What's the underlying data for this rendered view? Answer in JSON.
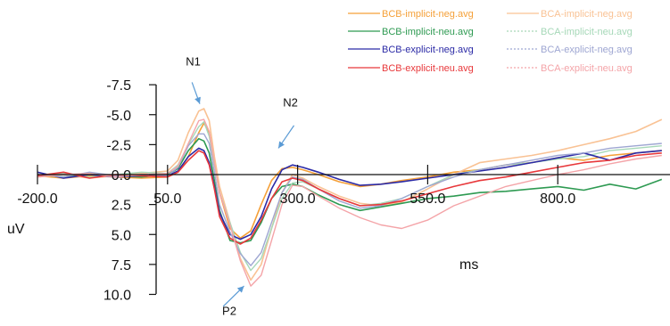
{
  "chart_data": {
    "type": "line",
    "title": "",
    "xlabel": "ms",
    "ylabel": "uV",
    "xlim": [
      -200,
      1000
    ],
    "ylim": [
      -7.5,
      10
    ],
    "y_inverted": true,
    "grid": false,
    "legend_position": "top-right",
    "x_ticks": [
      {
        "value": -200,
        "label": "-200.0"
      },
      {
        "value": 50,
        "label": "50.0"
      },
      {
        "value": 300,
        "label": "300.0"
      },
      {
        "value": 550,
        "label": "550.0"
      },
      {
        "value": 800,
        "label": "800.0"
      }
    ],
    "y_ticks": [
      {
        "value": -7.5,
        "label": "-7.5"
      },
      {
        "value": -5,
        "label": "-5.0"
      },
      {
        "value": -2.5,
        "label": "-2.5"
      },
      {
        "value": 0,
        "label": "0.0"
      },
      {
        "value": 2.5,
        "label": "2.5"
      },
      {
        "value": 5,
        "label": "5.0"
      },
      {
        "value": 7.5,
        "label": "7.5"
      },
      {
        "value": 10,
        "label": "10.0"
      }
    ],
    "annotations": [
      {
        "label": "N1",
        "label_x": 85,
        "label_y": -9.1,
        "arrow_from": [
          97,
          -7.7
        ],
        "arrow_to": [
          112,
          -5.9
        ]
      },
      {
        "label": "N2",
        "label_x": 272,
        "label_y": -5.7,
        "arrow_from": [
          293,
          -4.1
        ],
        "arrow_to": [
          263,
          -2.2
        ]
      },
      {
        "label": "P2",
        "label_x": 155,
        "label_y": 11.7,
        "arrow_from": [
          157,
          11.0
        ],
        "arrow_to": [
          197,
          9.3
        ]
      }
    ],
    "series": [
      {
        "name": "BCB-implicit-neg.avg",
        "color": "#f5a038",
        "dashed": false,
        "x": [
          -200,
          -150,
          -100,
          -50,
          0,
          50,
          70,
          90,
          110,
          120,
          130,
          140,
          150,
          170,
          190,
          210,
          230,
          250,
          270,
          290,
          310,
          340,
          380,
          420,
          460,
          500,
          550,
          600,
          650,
          700,
          750,
          800,
          850,
          900,
          950,
          1000
        ],
        "y": [
          0.1,
          0.3,
          0.1,
          0.2,
          0.3,
          0.2,
          -0.2,
          -1.5,
          -3.5,
          -4.3,
          -3.5,
          -1.0,
          1.5,
          4.5,
          5.3,
          4.7,
          2.5,
          0.5,
          -0.5,
          -0.6,
          -0.4,
          0.0,
          0.6,
          1.0,
          0.8,
          0.5,
          0.2,
          -0.2,
          -0.4,
          -0.8,
          -1.0,
          -1.4,
          -1.2,
          -1.6,
          -1.8,
          -2.0
        ]
      },
      {
        "name": "BCA-implicit-neg.avg",
        "color": "#f9c294",
        "dashed": false,
        "x": [
          -200,
          -150,
          -100,
          -50,
          0,
          50,
          70,
          90,
          110,
          120,
          130,
          140,
          150,
          170,
          190,
          210,
          230,
          250,
          270,
          290,
          310,
          340,
          380,
          420,
          460,
          500,
          550,
          600,
          650,
          700,
          750,
          800,
          850,
          900,
          950,
          1000
        ],
        "y": [
          0.2,
          0.0,
          0.3,
          0.1,
          -0.1,
          -0.3,
          -1.2,
          -3.5,
          -5.3,
          -5.5,
          -4.5,
          -1.5,
          1.0,
          4.0,
          7.0,
          8.8,
          7.5,
          4.5,
          1.5,
          0.0,
          0.3,
          1.0,
          1.8,
          2.4,
          2.6,
          2.3,
          1.2,
          0.0,
          -1.0,
          -1.3,
          -1.6,
          -2.0,
          -2.5,
          -3.0,
          -3.6,
          -4.6
        ]
      },
      {
        "name": "BCB-implicit-neu.avg",
        "color": "#2e9a52",
        "dashed": false,
        "x": [
          -200,
          -150,
          -100,
          -50,
          0,
          50,
          70,
          90,
          110,
          120,
          130,
          140,
          150,
          170,
          190,
          210,
          230,
          250,
          270,
          290,
          310,
          340,
          380,
          420,
          460,
          500,
          550,
          600,
          650,
          700,
          750,
          800,
          850,
          900,
          950,
          1000
        ],
        "y": [
          0.0,
          0.2,
          -0.1,
          0.1,
          0.2,
          0.0,
          -0.5,
          -2.0,
          -3.0,
          -2.8,
          -1.8,
          0.5,
          3.0,
          5.5,
          5.7,
          5.5,
          4.0,
          2.0,
          1.0,
          0.8,
          1.0,
          1.7,
          2.5,
          3.0,
          2.7,
          2.4,
          2.0,
          1.8,
          1.5,
          1.4,
          1.2,
          1.0,
          1.3,
          0.8,
          1.2,
          0.4
        ]
      },
      {
        "name": "BCA-implicit-neu.avg",
        "color": "#a6d8b8",
        "dashed": true,
        "x": [
          -200,
          -150,
          -100,
          -50,
          0,
          50,
          70,
          90,
          110,
          120,
          130,
          140,
          150,
          170,
          190,
          210,
          230,
          250,
          270,
          290,
          310,
          340,
          380,
          420,
          460,
          500,
          550,
          600,
          650,
          700,
          750,
          800,
          850,
          900,
          950,
          1000
        ],
        "y": [
          0.1,
          -0.1,
          0.2,
          0.0,
          -0.2,
          -0.1,
          -0.8,
          -2.5,
          -4.0,
          -4.4,
          -3.2,
          -0.8,
          1.5,
          4.0,
          6.5,
          8.0,
          7.0,
          4.5,
          2.0,
          0.7,
          0.6,
          1.2,
          2.0,
          2.6,
          2.4,
          2.0,
          1.0,
          0.0,
          -0.4,
          -0.8,
          -1.0,
          -1.3,
          -1.5,
          -2.0,
          -2.2,
          -2.4
        ]
      },
      {
        "name": "BCB-explicit-neg.avg",
        "color": "#2b2aa6",
        "dashed": false,
        "x": [
          -200,
          -150,
          -100,
          -50,
          0,
          50,
          70,
          90,
          110,
          120,
          130,
          140,
          150,
          170,
          190,
          210,
          230,
          250,
          270,
          290,
          310,
          340,
          380,
          420,
          460,
          500,
          550,
          600,
          650,
          700,
          750,
          800,
          850,
          900,
          950,
          1000
        ],
        "y": [
          -0.2,
          0.3,
          0.0,
          0.2,
          0.1,
          0.1,
          -0.3,
          -1.5,
          -2.2,
          -2.0,
          -1.0,
          1.0,
          3.2,
          5.0,
          5.4,
          5.0,
          3.5,
          1.2,
          -0.4,
          -0.8,
          -0.6,
          -0.2,
          0.4,
          0.9,
          0.8,
          0.6,
          0.3,
          0.0,
          -0.3,
          -0.6,
          -1.0,
          -1.4,
          -1.8,
          -1.2,
          -1.8,
          -2.0
        ]
      },
      {
        "name": "BCA-explicit-neg.avg",
        "color": "#9ea6d2",
        "dashed": true,
        "x": [
          -200,
          -150,
          -100,
          -50,
          0,
          50,
          70,
          90,
          110,
          120,
          130,
          140,
          150,
          170,
          190,
          210,
          230,
          250,
          270,
          290,
          310,
          340,
          380,
          420,
          460,
          500,
          550,
          600,
          650,
          700,
          750,
          800,
          850,
          900,
          950,
          1000
        ],
        "y": [
          0.0,
          0.2,
          -0.2,
          0.1,
          0.0,
          0.1,
          -0.6,
          -2.4,
          -3.4,
          -3.4,
          -2.6,
          -0.2,
          2.5,
          4.8,
          6.6,
          7.6,
          6.5,
          4.0,
          1.5,
          0.2,
          0.4,
          1.2,
          2.2,
          2.8,
          2.6,
          2.0,
          1.0,
          0.2,
          -0.4,
          -0.8,
          -1.2,
          -1.6,
          -1.8,
          -2.2,
          -2.4,
          -2.6
        ]
      },
      {
        "name": "BCB-explicit-neu.avg",
        "color": "#e8383b",
        "dashed": false,
        "x": [
          -200,
          -150,
          -100,
          -50,
          0,
          50,
          70,
          90,
          110,
          120,
          130,
          140,
          150,
          170,
          190,
          210,
          230,
          250,
          270,
          290,
          310,
          340,
          380,
          420,
          460,
          500,
          550,
          600,
          650,
          700,
          750,
          800,
          850,
          900,
          950,
          1000
        ],
        "y": [
          0.1,
          -0.2,
          0.3,
          0.0,
          0.1,
          0.2,
          -0.2,
          -1.2,
          -2.0,
          -1.8,
          -0.8,
          1.2,
          3.5,
          5.3,
          5.8,
          5.3,
          3.8,
          2.0,
          0.6,
          0.3,
          0.5,
          1.2,
          2.0,
          2.6,
          2.5,
          2.2,
          1.6,
          1.0,
          0.5,
          0.2,
          -0.2,
          -0.6,
          -1.0,
          -1.2,
          -1.6,
          -1.8
        ]
      },
      {
        "name": "BCA-explicit-neu.avg",
        "color": "#f4a4a8",
        "dashed": true,
        "x": [
          -200,
          -150,
          -100,
          -50,
          0,
          50,
          70,
          90,
          110,
          120,
          130,
          140,
          150,
          170,
          190,
          210,
          230,
          250,
          270,
          290,
          310,
          340,
          380,
          420,
          460,
          500,
          550,
          600,
          650,
          700,
          750,
          800,
          850,
          900,
          950,
          1000
        ],
        "y": [
          0.2,
          0.0,
          -0.1,
          0.2,
          0.0,
          -0.1,
          -0.7,
          -2.6,
          -4.5,
          -4.6,
          -3.6,
          -1.0,
          1.5,
          4.2,
          7.2,
          9.3,
          8.4,
          5.5,
          2.5,
          0.9,
          1.0,
          1.8,
          2.8,
          3.6,
          4.2,
          4.5,
          3.8,
          2.6,
          1.8,
          1.0,
          0.5,
          0.0,
          -0.4,
          -0.9,
          -1.3,
          -1.6
        ]
      }
    ]
  }
}
